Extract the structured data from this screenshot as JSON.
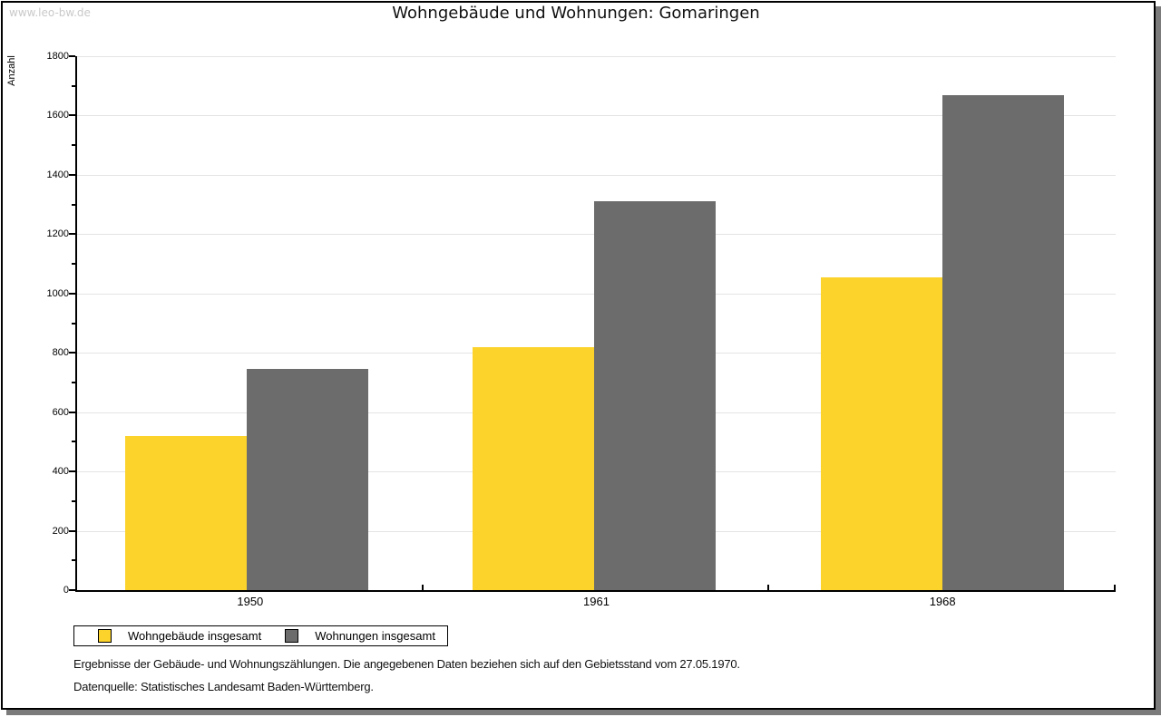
{
  "watermark": "www.leo-bw.de",
  "header": {
    "title": "Wohngebäude und Wohnungen: Gomaringen"
  },
  "chart_data": {
    "type": "bar",
    "title": "Wohngebäude und Wohnungen: Gomaringen",
    "categories": [
      "1950",
      "1961",
      "1968"
    ],
    "series": [
      {
        "name": "Wohngebäude insgesamt",
        "color": "#fcd32b",
        "values": [
          520,
          820,
          1055
        ]
      },
      {
        "name": "Wohnungen insgesamt",
        "color": "#6c6c6c",
        "values": [
          745,
          1310,
          1670
        ]
      }
    ],
    "xlabel": "",
    "ylabel": "Anzahl",
    "ylim": [
      0,
      1800
    ],
    "ytick_step": 200,
    "minor_tick_step": 100,
    "grid": true,
    "legend_position": "bottom-left"
  },
  "footnotes": [
    "Ergebnisse der Gebäude- und Wohnungszählungen. Die angegebenen Daten beziehen sich auf den Gebietsstand vom 27.05.1970.",
    "Datenquelle: Statistisches Landesamt Baden-Württemberg."
  ],
  "colors": {
    "grid": "#e4e4e4",
    "axis": "#000000",
    "frame_shadow": "#7b7b7b",
    "watermark_text": "#c9c9c9"
  }
}
